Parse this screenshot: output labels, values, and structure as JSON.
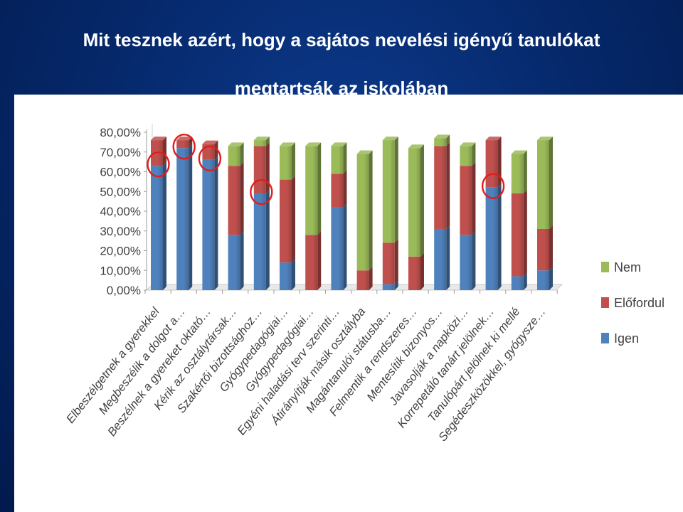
{
  "slide": {
    "title_line1": "Mit tesznek azért, hogy a sajátos nevelési igényű tanulókat",
    "title_line2": "megtartsák az iskolában"
  },
  "colors": {
    "background": "#062a6e",
    "igen": "#4f81bd",
    "elofordul": "#c0504d",
    "nem": "#9bbb59",
    "highlight_circle": "#e41b1b"
  },
  "chart_data": {
    "type": "bar",
    "stacked": true,
    "title": "",
    "xlabel": "",
    "ylabel": "",
    "ylim": [
      0,
      80
    ],
    "yticks": [
      "0,00%",
      "10,00%",
      "20,00%",
      "30,00%",
      "40,00%",
      "50,00%",
      "60,00%",
      "70,00%",
      "80,00%"
    ],
    "grid": false,
    "legend_position": "right",
    "categories": [
      "Elbeszélgetnek a gyerekkel",
      "Megbeszélik a dolgot a…",
      "Beszélnek a gyereket oktató…",
      "Kérik az osztálytársak…",
      "Szakértői bizottsághoz…",
      "Gyógypedagógiai…",
      "Gyógypedagógiai…",
      "Egyéni haladási terv szerinti…",
      "Átirányítják másik osztályba",
      "Magántanulói státusba…",
      "Felmentik a rendszeres…",
      "Mentesítik bizonyos…",
      "Javasolják a napközi…",
      "Korrepetáló tanárt jelölnek…",
      "Tanulópárt jelölnek ki mellé",
      "Segédeszközökkel, gyógysze…"
    ],
    "series": [
      {
        "name": "Igen",
        "values": [
          63,
          72,
          66,
          28,
          49,
          14,
          0,
          42,
          0,
          3,
          0,
          31,
          28,
          52,
          7,
          10
        ]
      },
      {
        "name": "Előfordul",
        "values": [
          13,
          4,
          8,
          35,
          24,
          42,
          28,
          17,
          10,
          21,
          17,
          42,
          35,
          24,
          42,
          21
        ]
      },
      {
        "name": "Nem",
        "values": [
          0,
          0,
          0,
          10,
          3,
          17,
          45,
          14,
          59,
          52,
          55,
          4,
          10,
          0,
          20,
          45
        ]
      }
    ],
    "highlighted_categories": [
      0,
      1,
      2,
      4,
      13
    ]
  }
}
